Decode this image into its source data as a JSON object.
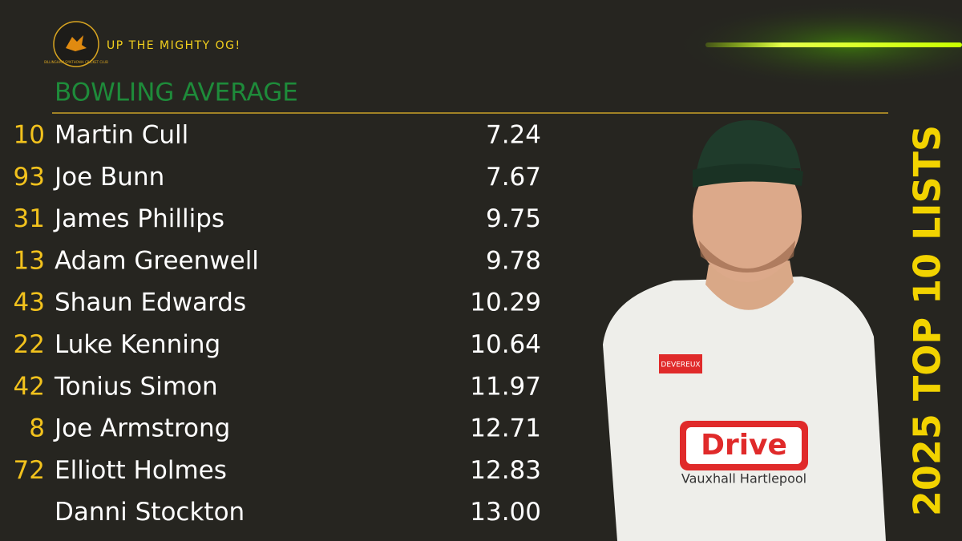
{
  "header": {
    "club": "BILLINGHAM SYNTHONIA CRICKET CLUB",
    "tagline": "UP THE MIGHTY OG!",
    "title": "BOWLING AVERAGE"
  },
  "side_title": "2025 TOP 10 LISTS",
  "table": {
    "rows": [
      {
        "number": "10",
        "name": "Martin Cull",
        "average": "7.24"
      },
      {
        "number": "93",
        "name": "Joe Bunn",
        "average": "7.67"
      },
      {
        "number": "31",
        "name": "James Phillips",
        "average": "9.75"
      },
      {
        "number": "13",
        "name": "Adam Greenwell",
        "average": "9.78"
      },
      {
        "number": "43",
        "name": "Shaun Edwards",
        "average": "10.29"
      },
      {
        "number": "22",
        "name": "Luke Kenning",
        "average": "10.64"
      },
      {
        "number": "42",
        "name": "Tonius Simon",
        "average": "11.97"
      },
      {
        "number": "8",
        "name": "Joe Armstrong",
        "average": "12.71"
      },
      {
        "number": "72",
        "name": "Elliott Holmes",
        "average": "12.83"
      },
      {
        "name": "Danni Stockton",
        "average": "13.00"
      }
    ]
  },
  "photo": {
    "badge": "DEVEREUX",
    "sponsor": "Drive",
    "sponsor_line": "Vauxhall Hartlepool"
  }
}
